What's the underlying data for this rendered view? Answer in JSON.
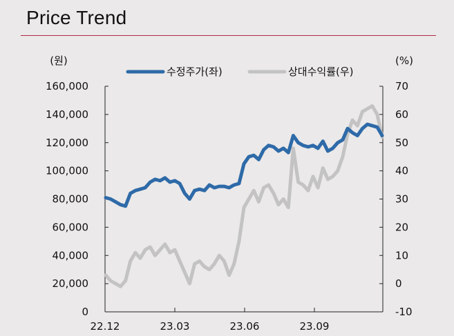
{
  "title": "Price Trend",
  "chart_data": {
    "type": "line",
    "x_ticks": [
      "22.12",
      "23.03",
      "23.06",
      "23.09"
    ],
    "y_left": {
      "unit": "(원)",
      "ylim": [
        0,
        160000
      ],
      "ticks": [
        "0",
        "20,000",
        "40,000",
        "60,000",
        "80,000",
        "100,000",
        "120,000",
        "140,000",
        "160,000"
      ]
    },
    "y_right": {
      "unit": "(%)",
      "ylim": [
        -10,
        70
      ],
      "ticks": [
        "-10",
        "0",
        "10",
        "20",
        "30",
        "40",
        "50",
        "60",
        "70"
      ]
    },
    "series": [
      {
        "name": "수정주가(좌)",
        "axis": "left",
        "color": "#2e6aa8",
        "x": [
          "22.12",
          "22.12",
          "22.12",
          "22.12",
          "22.12",
          "23.01",
          "23.01",
          "23.01",
          "23.01",
          "23.01",
          "23.02",
          "23.02",
          "23.02",
          "23.02",
          "23.03",
          "23.03",
          "23.03",
          "23.03",
          "23.03",
          "23.04",
          "23.04",
          "23.04",
          "23.04",
          "23.05",
          "23.05",
          "23.05",
          "23.05",
          "23.05",
          "23.06",
          "23.06",
          "23.06",
          "23.06",
          "23.06",
          "23.07",
          "23.07",
          "23.07",
          "23.07",
          "23.08",
          "23.08",
          "23.08",
          "23.08",
          "23.09",
          "23.09",
          "23.09",
          "23.09",
          "23.10",
          "23.10",
          "23.10",
          "23.10",
          "23.11",
          "23.11",
          "23.11",
          "23.11",
          "23.12",
          "23.12",
          "23.12",
          "23.12"
        ],
        "values": [
          81000,
          80000,
          78000,
          76000,
          75000,
          84000,
          86000,
          87000,
          88000,
          92000,
          94000,
          93000,
          95000,
          92000,
          93000,
          91000,
          84000,
          80000,
          86000,
          87000,
          86000,
          90000,
          88000,
          89000,
          89000,
          88000,
          90000,
          91000,
          105000,
          110000,
          111000,
          108000,
          115000,
          118000,
          117000,
          114000,
          116000,
          113000,
          125000,
          120000,
          118000,
          117000,
          118000,
          116000,
          121000,
          114000,
          116000,
          120000,
          122000,
          130000,
          127000,
          125000,
          130000,
          133000,
          132000,
          131000,
          125000
        ]
      },
      {
        "name": "상대수익률(우)",
        "axis": "right",
        "color": "#c3c3c3",
        "x": [
          "22.12",
          "22.12",
          "22.12",
          "22.12",
          "22.12",
          "23.01",
          "23.01",
          "23.01",
          "23.01",
          "23.01",
          "23.02",
          "23.02",
          "23.02",
          "23.02",
          "23.03",
          "23.03",
          "23.03",
          "23.03",
          "23.03",
          "23.04",
          "23.04",
          "23.04",
          "23.04",
          "23.05",
          "23.05",
          "23.05",
          "23.05",
          "23.05",
          "23.06",
          "23.06",
          "23.06",
          "23.06",
          "23.06",
          "23.07",
          "23.07",
          "23.07",
          "23.07",
          "23.08",
          "23.08",
          "23.08",
          "23.08",
          "23.09",
          "23.09",
          "23.09",
          "23.09",
          "23.10",
          "23.10",
          "23.10",
          "23.10",
          "23.11",
          "23.11",
          "23.11",
          "23.11",
          "23.12",
          "23.12",
          "23.12",
          "23.12"
        ],
        "values": [
          3,
          1,
          0,
          -1,
          1,
          8,
          11,
          9,
          12,
          13,
          10,
          12,
          14,
          11,
          12,
          8,
          4,
          0,
          7,
          8,
          6,
          5,
          7,
          10,
          8,
          3,
          7,
          15,
          27,
          30,
          33,
          29,
          34,
          35,
          32,
          28,
          30,
          27,
          48,
          36,
          35,
          33,
          38,
          34,
          41,
          37,
          38,
          40,
          45,
          53,
          58,
          56,
          61,
          62,
          63,
          60,
          52
        ]
      }
    ],
    "legend_position": "top"
  }
}
